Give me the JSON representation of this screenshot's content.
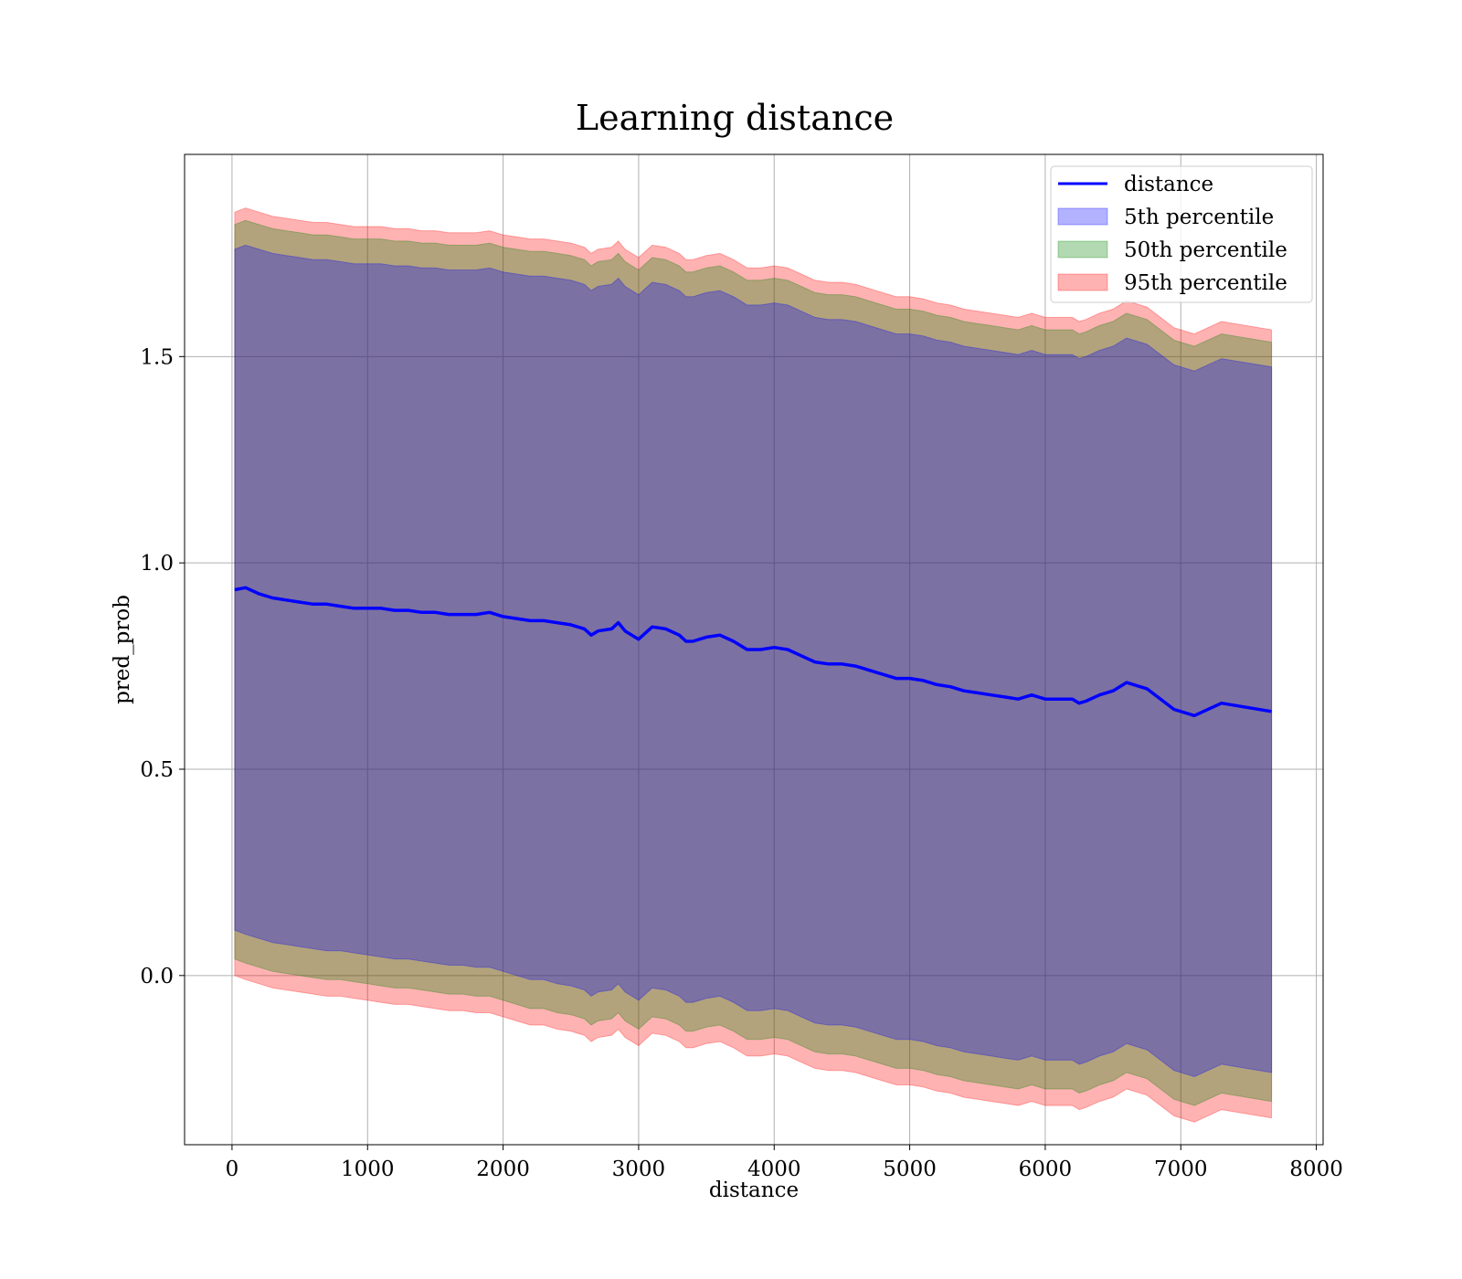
{
  "chart_data": {
    "type": "line",
    "title": "Learning distance",
    "xlabel": "distance",
    "ylabel": "pred_prob",
    "xlim": [
      -350,
      8050
    ],
    "ylim": [
      -0.41,
      1.99
    ],
    "xticks": [
      0,
      1000,
      2000,
      3000,
      4000,
      5000,
      6000,
      7000,
      8000
    ],
    "xtick_labels": [
      "0",
      "1000",
      "2000",
      "3000",
      "4000",
      "5000",
      "6000",
      "7000",
      "8000"
    ],
    "yticks": [
      0.0,
      0.5,
      1.0,
      1.5
    ],
    "ytick_labels": [
      "0.0",
      "0.5",
      "1.0",
      "1.5"
    ],
    "grid": true,
    "legend_position": "top-right",
    "x": [
      20,
      100,
      200,
      300,
      400,
      500,
      600,
      700,
      800,
      900,
      1000,
      1100,
      1200,
      1300,
      1400,
      1500,
      1600,
      1700,
      1800,
      1900,
      2000,
      2100,
      2200,
      2300,
      2400,
      2500,
      2600,
      2650,
      2700,
      2800,
      2850,
      2900,
      3000,
      3050,
      3100,
      3200,
      3300,
      3350,
      3400,
      3500,
      3600,
      3700,
      3750,
      3800,
      3900,
      4000,
      4100,
      4200,
      4300,
      4400,
      4500,
      4600,
      4700,
      4800,
      4900,
      5000,
      5100,
      5200,
      5300,
      5400,
      5500,
      5600,
      5700,
      5800,
      5900,
      6000,
      6100,
      6200,
      6250,
      6300,
      6400,
      6500,
      6600,
      6750,
      6950,
      7100,
      7300,
      7670
    ],
    "series": [
      {
        "name": "distance",
        "type": "line",
        "color": "#0000ff",
        "values": [
          0.935,
          0.94,
          0.925,
          0.915,
          0.91,
          0.905,
          0.9,
          0.9,
          0.895,
          0.89,
          0.89,
          0.89,
          0.885,
          0.885,
          0.88,
          0.88,
          0.875,
          0.875,
          0.875,
          0.88,
          0.87,
          0.865,
          0.86,
          0.86,
          0.855,
          0.85,
          0.84,
          0.825,
          0.835,
          0.84,
          0.855,
          0.835,
          0.815,
          0.83,
          0.845,
          0.84,
          0.825,
          0.81,
          0.81,
          0.82,
          0.825,
          0.81,
          0.8,
          0.79,
          0.79,
          0.795,
          0.79,
          0.775,
          0.76,
          0.755,
          0.755,
          0.75,
          0.74,
          0.73,
          0.72,
          0.72,
          0.715,
          0.705,
          0.7,
          0.69,
          0.685,
          0.68,
          0.675,
          0.67,
          0.68,
          0.67,
          0.67,
          0.67,
          0.66,
          0.665,
          0.68,
          0.69,
          0.71,
          0.695,
          0.645,
          0.63,
          0.66,
          0.64
        ]
      },
      {
        "name": "5th percentile",
        "type": "band",
        "color": "#0000ff",
        "lower": [
          0.11,
          0.1,
          0.09,
          0.08,
          0.075,
          0.07,
          0.065,
          0.06,
          0.06,
          0.055,
          0.05,
          0.045,
          0.04,
          0.04,
          0.035,
          0.03,
          0.025,
          0.025,
          0.02,
          0.02,
          0.01,
          0.0,
          -0.01,
          -0.01,
          -0.02,
          -0.025,
          -0.035,
          -0.05,
          -0.04,
          -0.035,
          -0.02,
          -0.04,
          -0.06,
          -0.045,
          -0.03,
          -0.035,
          -0.05,
          -0.065,
          -0.065,
          -0.055,
          -0.05,
          -0.065,
          -0.075,
          -0.085,
          -0.085,
          -0.08,
          -0.085,
          -0.1,
          -0.115,
          -0.12,
          -0.12,
          -0.125,
          -0.135,
          -0.145,
          -0.155,
          -0.155,
          -0.16,
          -0.17,
          -0.175,
          -0.185,
          -0.19,
          -0.195,
          -0.2,
          -0.205,
          -0.195,
          -0.205,
          -0.205,
          -0.205,
          -0.215,
          -0.21,
          -0.195,
          -0.185,
          -0.165,
          -0.18,
          -0.23,
          -0.245,
          -0.215,
          -0.235
        ],
        "upper": [
          1.76,
          1.77,
          1.76,
          1.75,
          1.745,
          1.74,
          1.735,
          1.735,
          1.73,
          1.725,
          1.725,
          1.725,
          1.72,
          1.72,
          1.715,
          1.715,
          1.71,
          1.71,
          1.71,
          1.715,
          1.705,
          1.7,
          1.695,
          1.695,
          1.69,
          1.685,
          1.675,
          1.66,
          1.67,
          1.675,
          1.69,
          1.67,
          1.65,
          1.665,
          1.68,
          1.675,
          1.66,
          1.645,
          1.645,
          1.655,
          1.66,
          1.645,
          1.635,
          1.625,
          1.625,
          1.63,
          1.625,
          1.61,
          1.595,
          1.59,
          1.59,
          1.585,
          1.575,
          1.565,
          1.555,
          1.555,
          1.55,
          1.54,
          1.535,
          1.525,
          1.52,
          1.515,
          1.51,
          1.505,
          1.515,
          1.505,
          1.505,
          1.505,
          1.495,
          1.5,
          1.515,
          1.525,
          1.545,
          1.53,
          1.48,
          1.465,
          1.495,
          1.475
        ]
      },
      {
        "name": "50th percentile",
        "type": "band",
        "color": "#008000",
        "lower": [
          0.04,
          0.03,
          0.02,
          0.01,
          0.005,
          0.0,
          -0.005,
          -0.01,
          -0.01,
          -0.015,
          -0.02,
          -0.025,
          -0.03,
          -0.03,
          -0.035,
          -0.04,
          -0.045,
          -0.045,
          -0.05,
          -0.05,
          -0.06,
          -0.07,
          -0.08,
          -0.08,
          -0.09,
          -0.095,
          -0.105,
          -0.12,
          -0.11,
          -0.105,
          -0.09,
          -0.11,
          -0.13,
          -0.115,
          -0.1,
          -0.105,
          -0.12,
          -0.135,
          -0.135,
          -0.125,
          -0.12,
          -0.135,
          -0.145,
          -0.155,
          -0.155,
          -0.15,
          -0.155,
          -0.17,
          -0.185,
          -0.19,
          -0.19,
          -0.195,
          -0.205,
          -0.215,
          -0.225,
          -0.225,
          -0.23,
          -0.24,
          -0.245,
          -0.255,
          -0.26,
          -0.265,
          -0.27,
          -0.275,
          -0.265,
          -0.275,
          -0.275,
          -0.275,
          -0.285,
          -0.28,
          -0.265,
          -0.255,
          -0.235,
          -0.25,
          -0.3,
          -0.315,
          -0.285,
          -0.305
        ],
        "upper": [
          1.82,
          1.83,
          1.82,
          1.81,
          1.805,
          1.8,
          1.795,
          1.795,
          1.79,
          1.785,
          1.785,
          1.785,
          1.78,
          1.78,
          1.775,
          1.775,
          1.77,
          1.77,
          1.77,
          1.775,
          1.765,
          1.76,
          1.755,
          1.755,
          1.75,
          1.745,
          1.735,
          1.72,
          1.73,
          1.735,
          1.75,
          1.73,
          1.71,
          1.725,
          1.74,
          1.735,
          1.72,
          1.705,
          1.705,
          1.715,
          1.72,
          1.705,
          1.695,
          1.685,
          1.685,
          1.69,
          1.685,
          1.67,
          1.655,
          1.65,
          1.65,
          1.645,
          1.635,
          1.625,
          1.615,
          1.615,
          1.61,
          1.6,
          1.595,
          1.585,
          1.58,
          1.575,
          1.57,
          1.565,
          1.575,
          1.565,
          1.565,
          1.565,
          1.555,
          1.56,
          1.575,
          1.585,
          1.605,
          1.59,
          1.54,
          1.525,
          1.555,
          1.535
        ]
      },
      {
        "name": "95th percentile",
        "type": "band",
        "color": "#ff0000",
        "lower": [
          0.0,
          -0.01,
          -0.02,
          -0.03,
          -0.035,
          -0.04,
          -0.045,
          -0.05,
          -0.05,
          -0.055,
          -0.06,
          -0.065,
          -0.07,
          -0.07,
          -0.075,
          -0.08,
          -0.085,
          -0.085,
          -0.09,
          -0.09,
          -0.1,
          -0.11,
          -0.12,
          -0.12,
          -0.13,
          -0.135,
          -0.145,
          -0.16,
          -0.15,
          -0.145,
          -0.13,
          -0.15,
          -0.17,
          -0.155,
          -0.14,
          -0.145,
          -0.16,
          -0.175,
          -0.175,
          -0.165,
          -0.16,
          -0.175,
          -0.185,
          -0.195,
          -0.195,
          -0.19,
          -0.195,
          -0.21,
          -0.225,
          -0.23,
          -0.23,
          -0.235,
          -0.245,
          -0.255,
          -0.265,
          -0.265,
          -0.27,
          -0.28,
          -0.285,
          -0.295,
          -0.3,
          -0.305,
          -0.31,
          -0.315,
          -0.305,
          -0.315,
          -0.315,
          -0.315,
          -0.325,
          -0.32,
          -0.305,
          -0.295,
          -0.275,
          -0.29,
          -0.34,
          -0.355,
          -0.325,
          -0.345
        ],
        "upper": [
          1.85,
          1.86,
          1.85,
          1.84,
          1.835,
          1.83,
          1.825,
          1.825,
          1.82,
          1.815,
          1.815,
          1.815,
          1.81,
          1.81,
          1.805,
          1.805,
          1.8,
          1.8,
          1.8,
          1.805,
          1.795,
          1.79,
          1.785,
          1.785,
          1.78,
          1.775,
          1.765,
          1.75,
          1.76,
          1.765,
          1.78,
          1.76,
          1.74,
          1.755,
          1.77,
          1.765,
          1.75,
          1.735,
          1.735,
          1.745,
          1.75,
          1.735,
          1.725,
          1.715,
          1.715,
          1.72,
          1.715,
          1.7,
          1.685,
          1.68,
          1.68,
          1.675,
          1.665,
          1.655,
          1.645,
          1.645,
          1.64,
          1.63,
          1.625,
          1.615,
          1.61,
          1.605,
          1.6,
          1.595,
          1.605,
          1.595,
          1.595,
          1.595,
          1.585,
          1.59,
          1.605,
          1.615,
          1.635,
          1.62,
          1.57,
          1.555,
          1.585,
          1.565
        ]
      }
    ]
  }
}
